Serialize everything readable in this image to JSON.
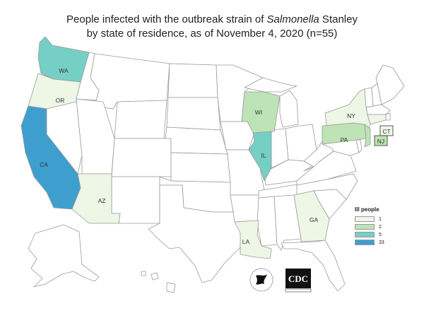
{
  "title": {
    "line1_pre": "People infected with the outbreak strain of ",
    "line1_italic": "Salmonella",
    "line1_post": " Stanley",
    "line2": "by state of residence, as of November 4, 2020 (n=55)"
  },
  "colors": {
    "none": "#ffffff",
    "c1": "#eef6e6",
    "c2": "#bde3b6",
    "c5": "#76cfc4",
    "c33": "#3e9fcf",
    "border": "#9a9a9a"
  },
  "states": {
    "WA": "WA",
    "OR": "OR",
    "CA": "CA",
    "AZ": "AZ",
    "WI": "WI",
    "IL": "IL",
    "NY": "NY",
    "PA": "PA",
    "NJ": "NJ",
    "CT": "CT",
    "GA": "GA",
    "LA": "LA"
  },
  "legend": {
    "title": "Ill people",
    "items": [
      {
        "label": "1",
        "color": "#eef6e6"
      },
      {
        "label": "2",
        "color": "#bde3b6"
      },
      {
        "label": "5",
        "color": "#76cfc4"
      },
      {
        "label": "33",
        "color": "#3e9fcf"
      }
    ]
  },
  "logos": {
    "hhs": "hhs-eagle-logo",
    "cdc_text": "CDC"
  }
}
